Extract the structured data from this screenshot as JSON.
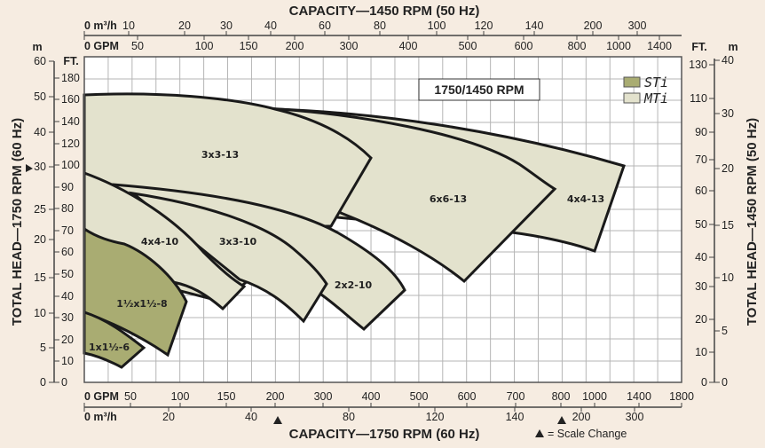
{
  "chart_data": {
    "type": "area",
    "title_top": "CAPACITY—1450 RPM (50 Hz)",
    "title_bottom": "CAPACITY—1750 RPM (60 Hz)",
    "ylabel_left": "TOTAL HEAD—1750 RPM (60 Hz)",
    "ylabel_right": "TOTAL HEAD—1450 RPM (50 Hz)",
    "speed_box": "1750/1450 RPM",
    "scale_change_note": "= Scale Change",
    "grid": true,
    "legend_position": "top-right",
    "legend": [
      {
        "name": "STi",
        "color": "#a9ac72"
      },
      {
        "name": "MTi",
        "color": "#e3e2cd"
      }
    ],
    "top_axis": {
      "m3h_ticks": [
        "0 m³/h",
        "10",
        "20",
        "30",
        "40",
        "60",
        "80",
        "100",
        "120",
        "140",
        "200",
        "300"
      ],
      "gpm_ticks": [
        "0 GPM",
        "50",
        "100",
        "150",
        "200",
        "300",
        "400",
        "500",
        "600",
        "800",
        "1000",
        "1400"
      ]
    },
    "bottom_axis": {
      "gpm_ticks": [
        "0 GPM",
        "50",
        "100",
        "150",
        "200",
        "300",
        "400",
        "500",
        "600",
        "700",
        "800",
        "1000",
        "1400",
        "1800"
      ],
      "m3h_ticks": [
        "0 m³/h",
        "20",
        "40",
        "80",
        "120",
        "140",
        "200",
        "300"
      ]
    },
    "left_axis": {
      "m_unit": "m",
      "ft_unit": "FT.",
      "m_ticks": [
        "60",
        "50",
        "40",
        "30",
        "25",
        "20",
        "15",
        "10",
        "5",
        "0"
      ],
      "ft_ticks": [
        "180",
        "160",
        "140",
        "120",
        "100",
        "90",
        "80",
        "70",
        "60",
        "50",
        "40",
        "30",
        "20",
        "10",
        "0"
      ]
    },
    "right_axis": {
      "ft_unit": "FT.",
      "m_unit": "m",
      "ft_ticks": [
        "130",
        "110",
        "90",
        "70",
        "60",
        "50",
        "40",
        "30",
        "20",
        "10",
        "0"
      ],
      "m_ticks": [
        "40",
        "30",
        "20",
        "15",
        "10",
        "5",
        "0"
      ]
    },
    "regions": [
      {
        "label": "3x3-13",
        "series": "MTi"
      },
      {
        "label": "4x4-13",
        "series": "MTi"
      },
      {
        "label": "6x6-13",
        "series": "MTi"
      },
      {
        "label": "2x2-10",
        "series": "MTi"
      },
      {
        "label": "3x3-10",
        "series": "MTi"
      },
      {
        "label": "4x4-10",
        "series": "MTi"
      },
      {
        "label": "1½x1½-8",
        "series": "STi"
      },
      {
        "label": "1x1½-6",
        "series": "STi"
      }
    ]
  }
}
